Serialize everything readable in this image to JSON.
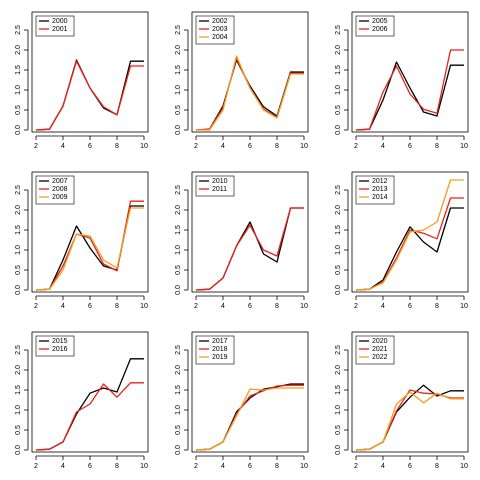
{
  "colors": {
    "black": "#000000",
    "red": "#e8211b",
    "orange": "#f0a01e"
  },
  "chart_data": [
    {
      "type": "line",
      "x": [
        2,
        3,
        4,
        5,
        6,
        7,
        8,
        9,
        10
      ],
      "xticks": [
        2,
        4,
        6,
        8,
        10
      ],
      "yticks": [
        0.0,
        0.5,
        1.0,
        1.5,
        2.0,
        2.5
      ],
      "ylim": [
        0,
        2.8
      ],
      "xlim": [
        2,
        10
      ],
      "legend": "top-left",
      "series": [
        {
          "name": "2000",
          "color": "black",
          "values": [
            0.0,
            0.02,
            0.6,
            1.75,
            1.05,
            0.55,
            0.38,
            1.72,
            1.72
          ]
        },
        {
          "name": "2001",
          "color": "red",
          "values": [
            0.0,
            0.02,
            0.6,
            1.72,
            1.05,
            0.58,
            0.38,
            1.6,
            1.6
          ]
        }
      ]
    },
    {
      "type": "line",
      "x": [
        2,
        3,
        4,
        5,
        6,
        7,
        8,
        9,
        10
      ],
      "xticks": [
        2,
        4,
        6,
        8,
        10
      ],
      "yticks": [
        0.0,
        0.5,
        1.0,
        1.5,
        2.0,
        2.5
      ],
      "ylim": [
        0,
        2.8
      ],
      "xlim": [
        2,
        10
      ],
      "legend": "top-left",
      "series": [
        {
          "name": "2002",
          "color": "black",
          "values": [
            0.0,
            0.02,
            0.6,
            1.75,
            1.1,
            0.58,
            0.35,
            1.45,
            1.45
          ]
        },
        {
          "name": "2003",
          "color": "red",
          "values": [
            0.0,
            0.02,
            0.55,
            1.8,
            1.05,
            0.52,
            0.32,
            1.42,
            1.42
          ]
        },
        {
          "name": "2004",
          "color": "orange",
          "values": [
            0.0,
            0.0,
            0.5,
            1.85,
            1.05,
            0.5,
            0.3,
            1.4,
            1.4
          ]
        }
      ]
    },
    {
      "type": "line",
      "x": [
        2,
        3,
        4,
        5,
        6,
        7,
        8,
        9,
        10
      ],
      "xticks": [
        2,
        4,
        6,
        8,
        10
      ],
      "yticks": [
        0.0,
        0.5,
        1.0,
        1.5,
        2.0,
        2.5
      ],
      "ylim": [
        0,
        2.8
      ],
      "xlim": [
        2,
        10
      ],
      "legend": "top-left",
      "series": [
        {
          "name": "2005",
          "color": "black",
          "values": [
            0.0,
            0.02,
            0.75,
            1.7,
            1.05,
            0.45,
            0.35,
            1.62,
            1.62
          ]
        },
        {
          "name": "2006",
          "color": "red",
          "values": [
            0.0,
            0.02,
            0.95,
            1.6,
            0.9,
            0.52,
            0.42,
            2.0,
            2.0
          ]
        }
      ]
    },
    {
      "type": "line",
      "x": [
        2,
        3,
        4,
        5,
        6,
        7,
        8,
        9,
        10
      ],
      "xticks": [
        2,
        4,
        6,
        8,
        10
      ],
      "yticks": [
        0.0,
        0.5,
        1.0,
        1.5,
        2.0,
        2.5
      ],
      "ylim": [
        0,
        2.8
      ],
      "xlim": [
        2,
        10
      ],
      "legend": "top-left",
      "series": [
        {
          "name": "2007",
          "color": "black",
          "values": [
            0.0,
            0.02,
            0.75,
            1.6,
            1.05,
            0.6,
            0.5,
            2.1,
            2.1
          ]
        },
        {
          "name": "2008",
          "color": "red",
          "values": [
            0.0,
            0.02,
            0.6,
            1.4,
            1.3,
            0.65,
            0.48,
            2.22,
            2.22
          ]
        },
        {
          "name": "2009",
          "color": "orange",
          "values": [
            0.0,
            0.02,
            0.5,
            1.4,
            1.35,
            0.75,
            0.55,
            2.05,
            2.05
          ]
        }
      ]
    },
    {
      "type": "line",
      "x": [
        2,
        3,
        4,
        5,
        6,
        7,
        8,
        9,
        10
      ],
      "xticks": [
        2,
        4,
        6,
        8,
        10
      ],
      "yticks": [
        0.0,
        0.5,
        1.0,
        1.5,
        2.0,
        2.5
      ],
      "ylim": [
        0,
        2.8
      ],
      "xlim": [
        2,
        10
      ],
      "legend": "top-left",
      "series": [
        {
          "name": "2010",
          "color": "black",
          "values": [
            0.0,
            0.02,
            0.3,
            1.1,
            1.7,
            0.9,
            0.7,
            2.05,
            2.05
          ]
        },
        {
          "name": "2011",
          "color": "red",
          "values": [
            0.0,
            0.02,
            0.3,
            1.1,
            1.62,
            1.0,
            0.85,
            2.05,
            2.05
          ]
        }
      ]
    },
    {
      "type": "line",
      "x": [
        2,
        3,
        4,
        5,
        6,
        7,
        8,
        9,
        10
      ],
      "xticks": [
        2,
        4,
        6,
        8,
        10
      ],
      "yticks": [
        0.0,
        0.5,
        1.0,
        1.5,
        2.0,
        2.5
      ],
      "ylim": [
        0,
        2.8
      ],
      "xlim": [
        2,
        10
      ],
      "legend": "top-left",
      "series": [
        {
          "name": "2012",
          "color": "black",
          "values": [
            0.0,
            0.02,
            0.25,
            0.95,
            1.58,
            1.2,
            0.95,
            2.05,
            2.05
          ]
        },
        {
          "name": "2013",
          "color": "red",
          "values": [
            0.0,
            0.02,
            0.2,
            0.8,
            1.5,
            1.42,
            1.28,
            2.3,
            2.3
          ]
        },
        {
          "name": "2014",
          "color": "orange",
          "values": [
            0.0,
            0.02,
            0.18,
            0.75,
            1.45,
            1.5,
            1.7,
            2.75,
            2.75
          ]
        }
      ]
    },
    {
      "type": "line",
      "x": [
        2,
        3,
        4,
        5,
        6,
        7,
        8,
        9,
        10
      ],
      "xticks": [
        2,
        4,
        6,
        8,
        10
      ],
      "yticks": [
        0.0,
        0.5,
        1.0,
        1.5,
        2.0,
        2.5
      ],
      "ylim": [
        0,
        2.8
      ],
      "xlim": [
        2,
        10
      ],
      "legend": "top-left",
      "series": [
        {
          "name": "2015",
          "color": "black",
          "values": [
            0.0,
            0.02,
            0.2,
            0.9,
            1.42,
            1.55,
            1.45,
            2.28,
            2.28
          ]
        },
        {
          "name": "2016",
          "color": "red",
          "values": [
            0.0,
            0.02,
            0.2,
            0.95,
            1.15,
            1.65,
            1.32,
            1.68,
            1.68
          ]
        }
      ]
    },
    {
      "type": "line",
      "x": [
        2,
        3,
        4,
        5,
        6,
        7,
        8,
        9,
        10
      ],
      "xticks": [
        2,
        4,
        6,
        8,
        10
      ],
      "yticks": [
        0.0,
        0.5,
        1.0,
        1.5,
        2.0,
        2.5
      ],
      "ylim": [
        0,
        2.8
      ],
      "xlim": [
        2,
        10
      ],
      "legend": "top-left",
      "series": [
        {
          "name": "2017",
          "color": "black",
          "values": [
            0.0,
            0.02,
            0.2,
            0.95,
            1.3,
            1.52,
            1.58,
            1.65,
            1.65
          ]
        },
        {
          "name": "2018",
          "color": "red",
          "values": [
            0.0,
            0.02,
            0.2,
            0.9,
            1.35,
            1.48,
            1.6,
            1.62,
            1.62
          ]
        },
        {
          "name": "2019",
          "color": "orange",
          "values": [
            0.0,
            0.02,
            0.2,
            0.85,
            1.52,
            1.5,
            1.55,
            1.55,
            1.55
          ]
        }
      ]
    },
    {
      "type": "line",
      "x": [
        2,
        3,
        4,
        5,
        6,
        7,
        8,
        9,
        10
      ],
      "xticks": [
        2,
        4,
        6,
        8,
        10
      ],
      "yticks": [
        0.0,
        0.5,
        1.0,
        1.5,
        2.0,
        2.5
      ],
      "ylim": [
        0,
        2.8
      ],
      "xlim": [
        2,
        10
      ],
      "legend": "top-left",
      "series": [
        {
          "name": "2020",
          "color": "black",
          "values": [
            0.0,
            0.02,
            0.2,
            0.95,
            1.32,
            1.62,
            1.35,
            1.48,
            1.48
          ]
        },
        {
          "name": "2021",
          "color": "red",
          "values": [
            0.0,
            0.02,
            0.2,
            0.98,
            1.5,
            1.42,
            1.4,
            1.3,
            1.3
          ]
        },
        {
          "name": "2022",
          "color": "orange",
          "values": [
            0.0,
            0.02,
            0.2,
            1.15,
            1.45,
            1.18,
            1.42,
            1.28,
            1.28
          ]
        }
      ]
    }
  ]
}
